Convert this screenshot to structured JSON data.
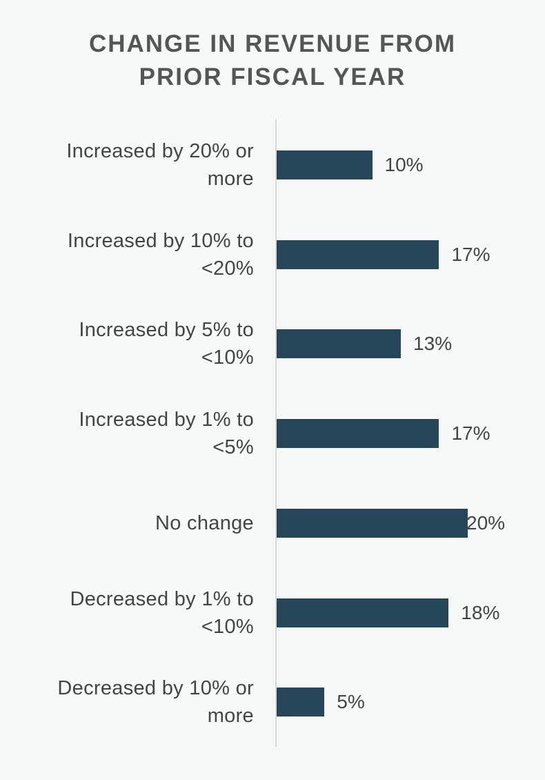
{
  "chart_data": {
    "type": "bar",
    "orientation": "horizontal",
    "title": "CHANGE IN REVENUE FROM PRIOR FISCAL YEAR",
    "categories": [
      "Increased by 20% or more",
      "Increased by 10% to <20%",
      "Increased by 5% to <10%",
      "Increased by 1% to <5%",
      "No change",
      "Decreased by 1% to <10%",
      "Decreased by 10% or more"
    ],
    "values": [
      10,
      17,
      13,
      17,
      20,
      18,
      5
    ],
    "value_labels": [
      "10%",
      "17%",
      "13%",
      "17%",
      "20%",
      "18%",
      "5%"
    ],
    "color": "#26475a"
  }
}
